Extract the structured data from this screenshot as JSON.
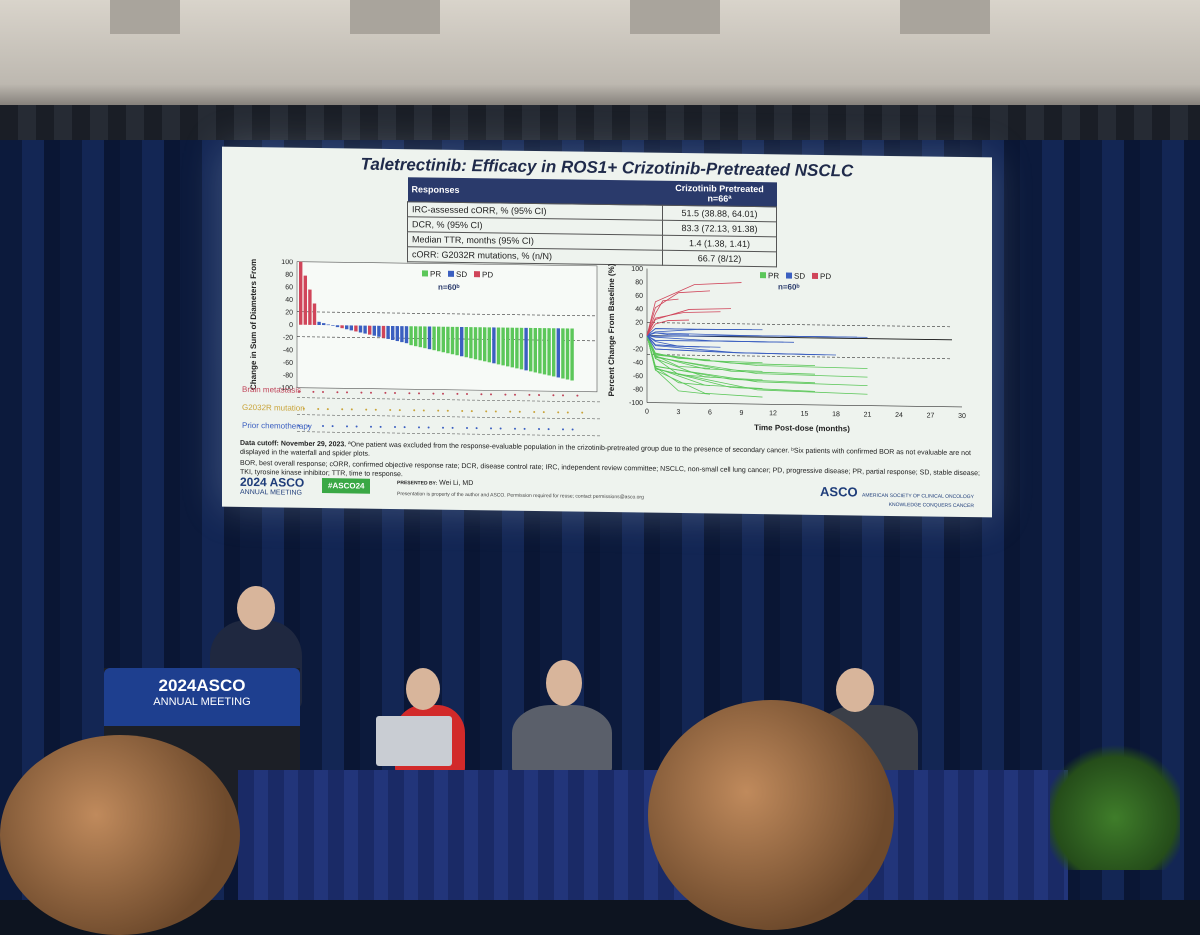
{
  "slide": {
    "title": "Taletrectinib: Efficacy in ROS1+ Crizotinib-Pretreated NSCLC",
    "table": {
      "header_left": "Responses",
      "header_right": "Crizotinib Pretreated",
      "header_n": "n=66ª",
      "rows": [
        {
          "label": "IRC-assessed cORR, % (95% CI)",
          "value": "51.5 (38.88, 64.01)"
        },
        {
          "label": "DCR, % (95% CI)",
          "value": "83.3 (72.13, 91.38)"
        },
        {
          "label": "Median TTR, months (95% CI)",
          "value": "1.4 (1.38, 1.41)"
        },
        {
          "label": "cORR: G2032R mutations, % (n/N)",
          "value": "66.7 (8/12)"
        }
      ]
    },
    "waterfall": {
      "ylabel": "Best Percent Change in Sum of Diameters From Baseline (%)",
      "legend": [
        "PR",
        "SD",
        "PD"
      ],
      "n_label": "n=60ᵇ",
      "yticks": [
        "100",
        "80",
        "60",
        "40",
        "20",
        "0",
        "-20",
        "-40",
        "-60",
        "-80",
        "-100"
      ]
    },
    "spider": {
      "ylabel": "Percent Change From Baseline (%)",
      "xlabel": "Time Post-dose (months)",
      "legend": [
        "PR",
        "SD",
        "PD"
      ],
      "n_label": "n=60ᵇ",
      "yticks": [
        "100",
        "80",
        "60",
        "40",
        "20",
        "0",
        "-20",
        "-40",
        "-60",
        "-80",
        "-100"
      ],
      "xticks": [
        "0",
        "3",
        "6",
        "9",
        "12",
        "15",
        "18",
        "21",
        "24",
        "27",
        "30"
      ]
    },
    "row_labels": {
      "brain": "Brain metastasis",
      "g2032r": "G2032R mutation",
      "prior": "Prior chemotherapy"
    },
    "footnote_bold": "Data cutoff: November 29, 2023.",
    "footnote_1": " ªOne patient was excluded from the response-evaluable population in the crizotinib-pretreated group due to the presence of secondary cancer. ᵇSix patients with confirmed BOR as not evaluable are not displayed in the waterfall and spider plots.",
    "footnote_2": "BOR, best overall response; cORR, confirmed objective response rate; DCR, disease control rate; IRC, independent review committee; NSCLC, non-small cell lung cancer; PD, progressive disease; PR, partial response; SD, stable disease; TKI, tyrosine kinase inhibitor; TTR, time to response.",
    "footer": {
      "asco_year": "2024 ASCO",
      "asco_meeting": "ANNUAL MEETING",
      "hashtag": "#ASCO24",
      "presented_by_label": "PRESENTED BY:",
      "presenter": "Wei Li, MD",
      "disclaimer": "Presentation is property of the author and ASCO. Permission required for reuse; contact permissions@asco.org",
      "asco_logo": "ASCO",
      "asco_sub": "AMERICAN SOCIETY OF CLINICAL ONCOLOGY",
      "tagline": "KNOWLEDGE CONQUERS CANCER"
    },
    "colors": {
      "pr": "#5cc75a",
      "sd": "#3b5fc0",
      "pd": "#d0455a"
    }
  },
  "podium": {
    "line1": "2024ASCO",
    "line2": "ANNUAL MEETING"
  }
}
